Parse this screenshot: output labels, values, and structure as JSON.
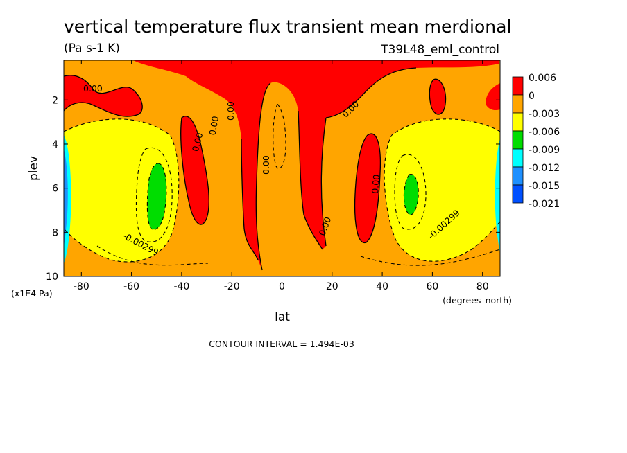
{
  "chart_data": {
    "type": "contour",
    "title": "vertical temperature flux transient mean merdional",
    "units": "(Pa s-1 K)",
    "dataset": "T39L48_eml_control",
    "xlabel": "lat",
    "xunits": "(degrees_north)",
    "ylabel": "plev",
    "yunits": "(x1E4 Pa)",
    "xlim": [
      -87,
      87
    ],
    "ylim": [
      10,
      0.2
    ],
    "x_ticks": [
      -80,
      -60,
      -40,
      -20,
      0,
      20,
      40,
      60,
      80
    ],
    "x_tick_labels": [
      "-80",
      "-60",
      "-40",
      "-20",
      "0",
      "20",
      "40",
      "60",
      "80"
    ],
    "y_ticks": [
      2,
      4,
      6,
      8,
      10
    ],
    "y_tick_labels": [
      "2",
      "4",
      "6",
      "8",
      "10"
    ],
    "contour_interval_text": "CONTOUR INTERVAL = 1.494E-03",
    "contour_labels": [
      "0.00",
      "0.00",
      "0.00",
      "0.00",
      "0.00",
      "0.00",
      "0.00",
      "0.00",
      "-0.00299",
      "-0.00299"
    ],
    "legend": {
      "levels": [
        "0.006",
        "0",
        "-0.003",
        "-0.006",
        "-0.009",
        "-0.012",
        "-0.015",
        "-0.021"
      ],
      "colors": [
        "#ff0000",
        "#ffa500",
        "#ffff00",
        "#00dd00",
        "#00ffff",
        "#1e90ff",
        "#0050ff"
      ]
    },
    "colors": {
      "positive": "#ff0000",
      "near_zero": "#ffa500",
      "neg_003": "#ffff00",
      "neg_006": "#00dd00",
      "neg_009": "#00ffff",
      "neg_012": "#1e90ff",
      "neg_015": "#0050ff"
    }
  }
}
